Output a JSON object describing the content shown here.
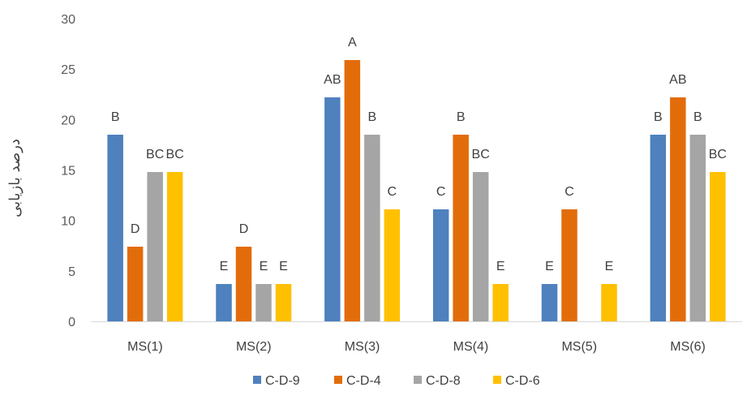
{
  "chart_data": {
    "type": "bar",
    "title": "",
    "xlabel": "",
    "ylabel": "درصد بازیابی",
    "ylim": [
      0,
      30
    ],
    "yticks": [
      0,
      5,
      10,
      15,
      20,
      25,
      30
    ],
    "grid": false,
    "legend_position": "bottom",
    "categories": [
      "MS(1)",
      "MS(2)",
      "MS(3)",
      "MS(4)",
      "MS(5)",
      "MS(6)"
    ],
    "series": [
      {
        "name": "C-D-9",
        "color": "#4E81BD",
        "values": [
          18.5,
          3.7,
          22.2,
          11.1,
          3.7,
          18.5
        ],
        "labels": [
          "B",
          "E",
          "AB",
          "C",
          "E",
          "B"
        ]
      },
      {
        "name": "C-D-4",
        "color": "#E36C0A",
        "values": [
          7.4,
          7.4,
          25.9,
          18.5,
          11.1,
          22.2
        ],
        "labels": [
          "D",
          "D",
          "A",
          "B",
          "C",
          "AB"
        ]
      },
      {
        "name": "C-D-8",
        "color": "#A5A5A5",
        "values": [
          14.8,
          3.7,
          18.5,
          14.8,
          0,
          18.5
        ],
        "labels": [
          "BC",
          "E",
          "B",
          "BC",
          "",
          "B"
        ]
      },
      {
        "name": "C-D-6",
        "color": "#FFC000",
        "values": [
          14.8,
          3.7,
          11.1,
          3.7,
          3.7,
          14.8
        ],
        "labels": [
          "BC",
          "E",
          "C",
          "E",
          "E",
          "BC"
        ]
      }
    ]
  }
}
